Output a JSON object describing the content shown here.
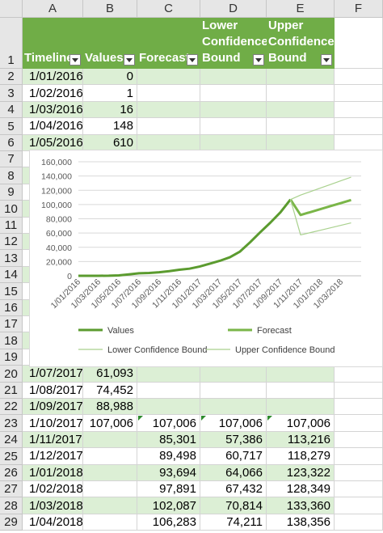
{
  "columns": [
    "A",
    "B",
    "C",
    "D",
    "E",
    "F"
  ],
  "table": {
    "headers": {
      "timeline": "Timeline",
      "values": "Values",
      "forecast": "Forecast",
      "lower_line1": "Lower",
      "lower_line2": "Confidence",
      "lower_line3": "Bound",
      "upper_line1": "Upper",
      "upper_line2": "Confidence",
      "upper_line3": "Bound"
    },
    "rows": [
      {
        "row": "2",
        "date": "1/01/2016",
        "value": "0",
        "forecast": "",
        "lower": "",
        "upper": ""
      },
      {
        "row": "3",
        "date": "1/02/2016",
        "value": "1",
        "forecast": "",
        "lower": "",
        "upper": ""
      },
      {
        "row": "4",
        "date": "1/03/2016",
        "value": "16",
        "forecast": "",
        "lower": "",
        "upper": ""
      },
      {
        "row": "5",
        "date": "1/04/2016",
        "value": "148",
        "forecast": "",
        "lower": "",
        "upper": ""
      },
      {
        "row": "6",
        "date": "1/05/2016",
        "value": "610",
        "forecast": "",
        "lower": "",
        "upper": ""
      },
      {
        "row": "20",
        "date": "1/07/2017",
        "value": "61,093",
        "forecast": "",
        "lower": "",
        "upper": ""
      },
      {
        "row": "21",
        "date": "1/08/2017",
        "value": "74,452",
        "forecast": "",
        "lower": "",
        "upper": ""
      },
      {
        "row": "22",
        "date": "1/09/2017",
        "value": "88,988",
        "forecast": "",
        "lower": "",
        "upper": ""
      },
      {
        "row": "23",
        "date": "1/10/2017",
        "value": "107,006",
        "forecast": "107,006",
        "lower": "107,006",
        "upper": "107,006"
      },
      {
        "row": "24",
        "date": "1/11/2017",
        "value": "",
        "forecast": "85,301",
        "lower": "57,386",
        "upper": "113,216"
      },
      {
        "row": "25",
        "date": "1/12/2017",
        "value": "",
        "forecast": "89,498",
        "lower": "60,717",
        "upper": "118,279"
      },
      {
        "row": "26",
        "date": "1/01/2018",
        "value": "",
        "forecast": "93,694",
        "lower": "64,066",
        "upper": "123,322"
      },
      {
        "row": "27",
        "date": "1/02/2018",
        "value": "",
        "forecast": "97,891",
        "lower": "67,432",
        "upper": "128,349"
      },
      {
        "row": "28",
        "date": "1/03/2018",
        "value": "",
        "forecast": "102,087",
        "lower": "70,814",
        "upper": "133,360"
      },
      {
        "row": "29",
        "date": "1/04/2018",
        "value": "",
        "forecast": "106,283",
        "lower": "74,211",
        "upper": "138,356"
      }
    ],
    "hidden_row_numbers": [
      "7",
      "8",
      "9",
      "10",
      "11",
      "12",
      "13",
      "14",
      "15",
      "16",
      "17",
      "18",
      "19"
    ]
  },
  "colors": {
    "values": "#5b9b2f",
    "forecast": "#7ab648",
    "bounds": "#a9d18e",
    "header_fill": "#70ad47",
    "band_fill": "#dcefd5"
  },
  "chart_data": {
    "type": "line",
    "title": "",
    "xlabel": "",
    "ylabel": "",
    "ylim": [
      0,
      160000
    ],
    "yticks": [
      "0",
      "20,000",
      "40,000",
      "60,000",
      "80,000",
      "100,000",
      "120,000",
      "140,000",
      "160,000"
    ],
    "xticks": [
      "1/01/2016",
      "1/03/2016",
      "1/05/2016",
      "1/07/2016",
      "1/09/2016",
      "1/11/2016",
      "1/01/2017",
      "1/03/2017",
      "1/05/2017",
      "1/07/2017",
      "1/09/2017",
      "1/11/2017",
      "1/01/2018",
      "1/03/2018"
    ],
    "grid": true,
    "legend_position": "bottom",
    "series": [
      {
        "name": "Values",
        "values": [
          [
            0,
            0
          ],
          [
            1,
            1
          ],
          [
            2,
            16
          ],
          [
            3,
            148
          ],
          [
            4,
            610
          ],
          [
            5,
            2000
          ],
          [
            6,
            3500
          ],
          [
            7,
            4000
          ],
          [
            8,
            5000
          ],
          [
            9,
            6500
          ],
          [
            10,
            8500
          ],
          [
            11,
            10000
          ],
          [
            12,
            13000
          ],
          [
            13,
            17000
          ],
          [
            14,
            21000
          ],
          [
            15,
            26000
          ],
          [
            16,
            34000
          ],
          [
            17,
            47000
          ],
          [
            18,
            61093
          ],
          [
            19,
            74452
          ],
          [
            20,
            88988
          ],
          [
            21,
            107006
          ]
        ]
      },
      {
        "name": "Forecast",
        "values": [
          [
            21,
            107006
          ],
          [
            22,
            85301
          ],
          [
            23,
            89498
          ],
          [
            24,
            93694
          ],
          [
            25,
            97891
          ],
          [
            26,
            102087
          ],
          [
            27,
            106283
          ]
        ]
      },
      {
        "name": "Lower Confidence Bound",
        "values": [
          [
            21,
            107006
          ],
          [
            22,
            57386
          ],
          [
            23,
            60717
          ],
          [
            24,
            64066
          ],
          [
            25,
            67432
          ],
          [
            26,
            70814
          ],
          [
            27,
            74211
          ]
        ]
      },
      {
        "name": "Upper Confidence Bound",
        "values": [
          [
            21,
            107006
          ],
          [
            22,
            113216
          ],
          [
            23,
            118279
          ],
          [
            24,
            123322
          ],
          [
            25,
            128349
          ],
          [
            26,
            133360
          ],
          [
            27,
            138356
          ]
        ]
      }
    ]
  }
}
